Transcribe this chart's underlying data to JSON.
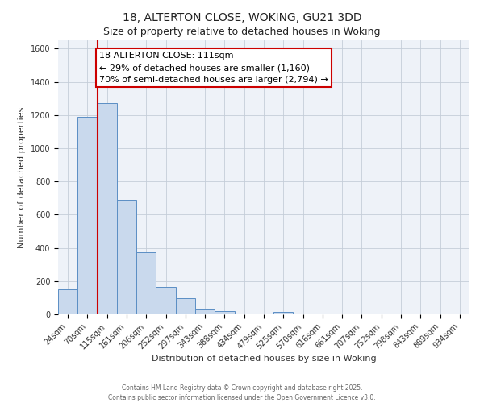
{
  "title": "18, ALTERTON CLOSE, WOKING, GU21 3DD",
  "subtitle": "Size of property relative to detached houses in Woking",
  "xlabel": "Distribution of detached houses by size in Woking",
  "ylabel": "Number of detached properties",
  "bar_labels": [
    "24sqm",
    "70sqm",
    "115sqm",
    "161sqm",
    "206sqm",
    "252sqm",
    "297sqm",
    "343sqm",
    "388sqm",
    "434sqm",
    "479sqm",
    "525sqm",
    "570sqm",
    "616sqm",
    "661sqm",
    "707sqm",
    "752sqm",
    "798sqm",
    "843sqm",
    "889sqm",
    "934sqm"
  ],
  "bar_values": [
    150,
    1190,
    1270,
    690,
    375,
    165,
    95,
    35,
    20,
    0,
    0,
    15,
    0,
    0,
    0,
    0,
    0,
    0,
    0,
    0,
    0
  ],
  "bar_color": "#c9d9ed",
  "bar_edge_color": "#5b8ec4",
  "annotation_title": "18 ALTERTON CLOSE: 111sqm",
  "annotation_line1": "← 29% of detached houses are smaller (1,160)",
  "annotation_line2": "70% of semi-detached houses are larger (2,794) →",
  "annotation_box_edge": "#cc0000",
  "red_line_index": 1.5,
  "ylim": [
    0,
    1650
  ],
  "yticks": [
    0,
    200,
    400,
    600,
    800,
    1000,
    1200,
    1400,
    1600
  ],
  "footer1": "Contains HM Land Registry data © Crown copyright and database right 2025.",
  "footer2": "Contains public sector information licensed under the Open Government Licence v3.0.",
  "bg_color": "#ffffff",
  "plot_bg_color": "#eef2f8",
  "grid_color": "#c5cdd8",
  "title_fontsize": 10,
  "subtitle_fontsize": 9,
  "tick_fontsize": 7,
  "label_fontsize": 8,
  "footer_fontsize": 5.5,
  "annotation_fontsize": 8
}
